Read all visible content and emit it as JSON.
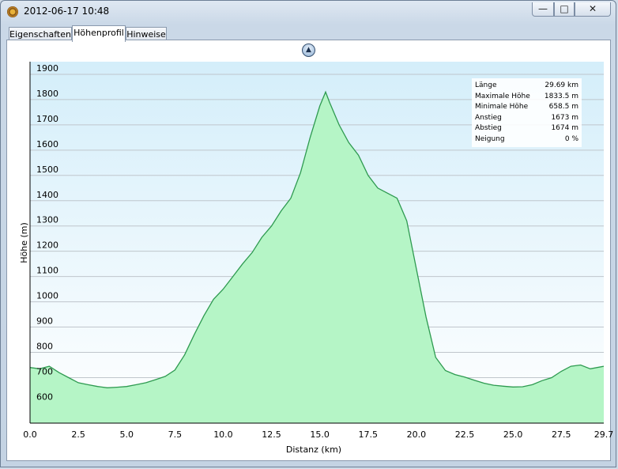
{
  "window": {
    "title": "2012-06-17 10:48",
    "min_symbol": "—",
    "max_symbol": "□",
    "close_symbol": "✕",
    "icon": "app-compass-icon"
  },
  "tabs": [
    {
      "label": "Eigenschaften",
      "active": false
    },
    {
      "label": "Höhenprofil",
      "active": true
    },
    {
      "label": "Hinweise",
      "active": false
    }
  ],
  "collapse_button": {
    "symbol": "▲",
    "icon": "collapse-up-icon"
  },
  "stats": [
    {
      "label": "Länge",
      "value": "29.69 km"
    },
    {
      "label": "Maximale Höhe",
      "value": "1833.5 m"
    },
    {
      "label": "Minimale Höhe",
      "value": "658.5 m"
    },
    {
      "label": "Anstieg",
      "value": "1673 m"
    },
    {
      "label": "Abstieg",
      "value": "1674 m"
    },
    {
      "label": "Neigung",
      "value": "0 %"
    }
  ],
  "chart_data": {
    "type": "area",
    "xlabel": "Distanz  (km)",
    "ylabel": "Höhe (m)",
    "xlim": [
      0,
      29.7
    ],
    "ylim": [
      520,
      1950
    ],
    "x_ticks": [
      "0.0",
      "2.5",
      "5.0",
      "7.5",
      "10.0",
      "12.5",
      "15.0",
      "17.5",
      "20.0",
      "22.5",
      "25.0",
      "27.5",
      "29.7"
    ],
    "x_tick_values": [
      0,
      2.5,
      5,
      7.5,
      10,
      12.5,
      15,
      17.5,
      20,
      22.5,
      25,
      27.5,
      29.7
    ],
    "y_ticks": [
      600,
      700,
      800,
      900,
      1000,
      1100,
      1200,
      1300,
      1400,
      1500,
      1600,
      1700,
      1800,
      1900
    ],
    "grid": true,
    "fill_color": "#b5f5c6",
    "line_color": "#2e9a50",
    "background_top": "#d4eefa",
    "background_bottom": "#ffffff",
    "x": [
      0,
      0.5,
      1.0,
      1.5,
      2.0,
      2.5,
      3.0,
      3.5,
      4.0,
      4.5,
      5.0,
      5.5,
      6.0,
      6.5,
      7.0,
      7.5,
      8.0,
      8.5,
      9.0,
      9.5,
      10.0,
      10.5,
      11.0,
      11.5,
      12.0,
      12.5,
      13.0,
      13.5,
      14.0,
      14.5,
      15.0,
      15.3,
      15.5,
      16.0,
      16.5,
      17.0,
      17.5,
      18.0,
      18.5,
      19.0,
      19.5,
      20.0,
      20.5,
      21.0,
      21.5,
      22.0,
      22.5,
      23.0,
      23.5,
      24.0,
      24.5,
      25.0,
      25.5,
      26.0,
      26.5,
      27.0,
      27.5,
      28.0,
      28.5,
      29.0,
      29.7
    ],
    "y": [
      740,
      735,
      745,
      720,
      700,
      680,
      672,
      665,
      660,
      662,
      665,
      672,
      680,
      692,
      705,
      730,
      790,
      870,
      945,
      1010,
      1050,
      1100,
      1150,
      1195,
      1255,
      1300,
      1360,
      1410,
      1510,
      1650,
      1775,
      1830,
      1790,
      1700,
      1630,
      1580,
      1500,
      1450,
      1430,
      1410,
      1320,
      1130,
      940,
      780,
      728,
      712,
      702,
      690,
      678,
      670,
      666,
      663,
      664,
      672,
      688,
      700,
      725,
      745,
      750,
      735,
      745
    ]
  }
}
